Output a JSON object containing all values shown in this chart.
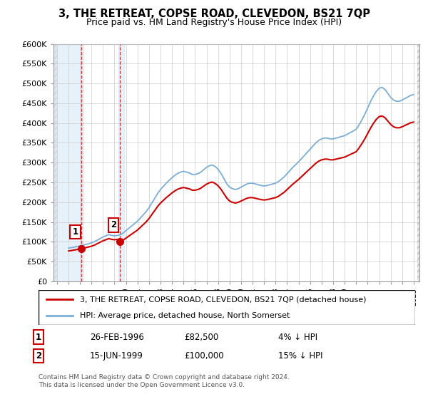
{
  "title": "3, THE RETREAT, COPSE ROAD, CLEVEDON, BS21 7QP",
  "subtitle": "Price paid vs. HM Land Registry's House Price Index (HPI)",
  "ylim": [
    0,
    600000
  ],
  "xlim_start": 1993.7,
  "xlim_end": 2025.5,
  "hpi_color": "#7aaed6",
  "price_color": "#cc0000",
  "sale1_date": 1996.13,
  "sale1_price": 82500,
  "sale2_date": 1999.46,
  "sale2_price": 100000,
  "legend_line1": "3, THE RETREAT, COPSE ROAD, CLEVEDON, BS21 7QP (detached house)",
  "legend_line2": "HPI: Average price, detached house, North Somerset",
  "table_row1": [
    "1",
    "26-FEB-1996",
    "£82,500",
    "4% ↓ HPI"
  ],
  "table_row2": [
    "2",
    "15-JUN-1999",
    "£100,000",
    "15% ↓ HPI"
  ],
  "footer": "Contains HM Land Registry data © Crown copyright and database right 2024.\nThis data is licensed under the Open Government Licence v3.0.",
  "yticks": [
    0,
    50000,
    100000,
    150000,
    200000,
    250000,
    300000,
    350000,
    400000,
    450000,
    500000,
    550000,
    600000
  ],
  "ytick_labels": [
    "£0",
    "£50K",
    "£100K",
    "£150K",
    "£200K",
    "£250K",
    "£300K",
    "£350K",
    "£400K",
    "£450K",
    "£500K",
    "£550K",
    "£600K"
  ],
  "hpi_years": [
    1995.0,
    1995.25,
    1995.5,
    1995.75,
    1996.0,
    1996.25,
    1996.5,
    1996.75,
    1997.0,
    1997.25,
    1997.5,
    1997.75,
    1998.0,
    1998.25,
    1998.5,
    1998.75,
    1999.0,
    1999.25,
    1999.5,
    1999.75,
    2000.0,
    2000.25,
    2000.5,
    2000.75,
    2001.0,
    2001.25,
    2001.5,
    2001.75,
    2002.0,
    2002.25,
    2002.5,
    2002.75,
    2003.0,
    2003.25,
    2003.5,
    2003.75,
    2004.0,
    2004.25,
    2004.5,
    2004.75,
    2005.0,
    2005.25,
    2005.5,
    2005.75,
    2006.0,
    2006.25,
    2006.5,
    2006.75,
    2007.0,
    2007.25,
    2007.5,
    2007.75,
    2008.0,
    2008.25,
    2008.5,
    2008.75,
    2009.0,
    2009.25,
    2009.5,
    2009.75,
    2010.0,
    2010.25,
    2010.5,
    2010.75,
    2011.0,
    2011.25,
    2011.5,
    2011.75,
    2012.0,
    2012.25,
    2012.5,
    2012.75,
    2013.0,
    2013.25,
    2013.5,
    2013.75,
    2014.0,
    2014.25,
    2014.5,
    2014.75,
    2015.0,
    2015.25,
    2015.5,
    2015.75,
    2016.0,
    2016.25,
    2016.5,
    2016.75,
    2017.0,
    2017.25,
    2017.5,
    2017.75,
    2018.0,
    2018.25,
    2018.5,
    2018.75,
    2019.0,
    2019.25,
    2019.5,
    2019.75,
    2020.0,
    2020.25,
    2020.5,
    2020.75,
    2021.0,
    2021.25,
    2021.5,
    2021.75,
    2022.0,
    2022.25,
    2022.5,
    2022.75,
    2023.0,
    2023.25,
    2023.5,
    2023.75,
    2024.0,
    2024.25,
    2024.5,
    2024.75,
    2025.0
  ],
  "hpi_values": [
    84000,
    85000,
    86500,
    88000,
    89500,
    91000,
    93000,
    95000,
    97000,
    100000,
    104000,
    108000,
    112000,
    115000,
    118000,
    116000,
    115000,
    116000,
    117500,
    122000,
    128000,
    134000,
    140000,
    146000,
    152000,
    160000,
    168000,
    176000,
    186000,
    198000,
    210000,
    222000,
    232000,
    240000,
    248000,
    255000,
    262000,
    268000,
    273000,
    276000,
    278000,
    276000,
    274000,
    270000,
    270000,
    272000,
    276000,
    282000,
    288000,
    292000,
    294000,
    290000,
    283000,
    273000,
    260000,
    247000,
    238000,
    234000,
    232000,
    234000,
    238000,
    242000,
    246000,
    248000,
    248000,
    246000,
    244000,
    242000,
    241000,
    242000,
    244000,
    246000,
    248000,
    252000,
    258000,
    264000,
    272000,
    280000,
    288000,
    295000,
    302000,
    310000,
    318000,
    326000,
    334000,
    342000,
    350000,
    356000,
    360000,
    362000,
    362000,
    360000,
    360000,
    362000,
    364000,
    366000,
    368000,
    372000,
    376000,
    380000,
    384000,
    395000,
    408000,
    422000,
    438000,
    454000,
    468000,
    480000,
    488000,
    490000,
    485000,
    475000,
    465000,
    458000,
    455000,
    455000,
    458000,
    462000,
    466000,
    470000,
    472000
  ]
}
